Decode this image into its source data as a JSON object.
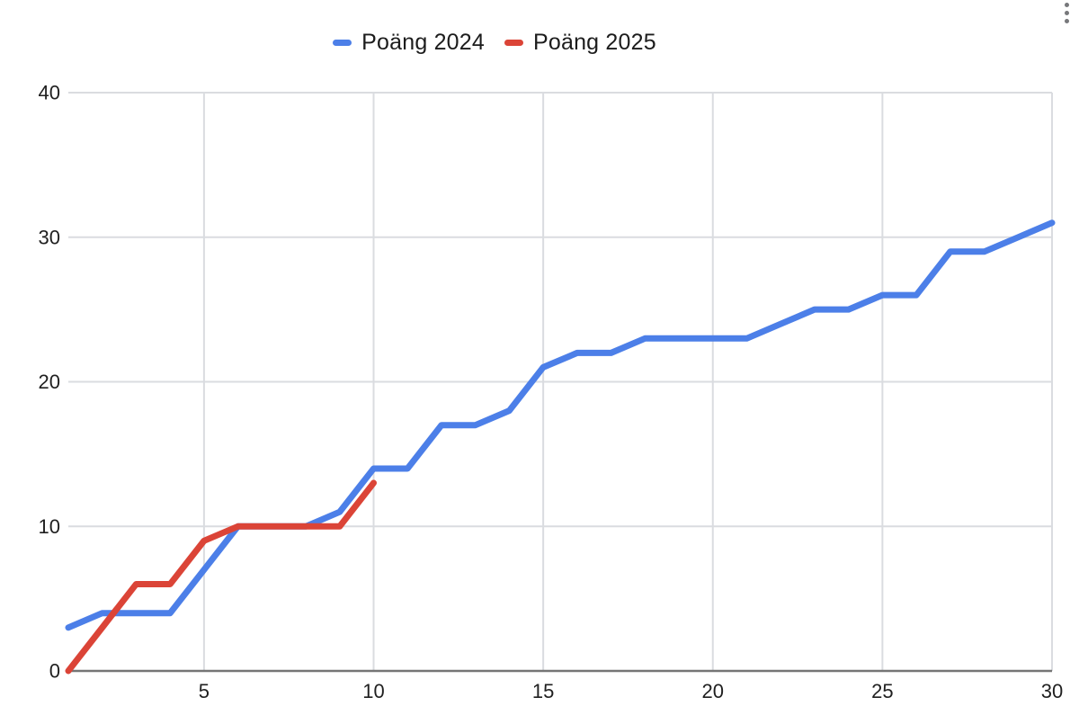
{
  "legend": {
    "items": [
      {
        "label": "Poäng 2024"
      },
      {
        "label": "Poäng 2025"
      }
    ]
  },
  "menu": {
    "icon": "kebab-menu-icon"
  },
  "chart_data": {
    "type": "line",
    "x": [
      1,
      2,
      3,
      4,
      5,
      6,
      7,
      8,
      9,
      10,
      11,
      12,
      13,
      14,
      15,
      16,
      17,
      18,
      19,
      20,
      21,
      22,
      23,
      24,
      25,
      26,
      27,
      28,
      29,
      30
    ],
    "series": [
      {
        "name": "Poäng 2024",
        "color": "#4c7fe8",
        "values": [
          3,
          4,
          4,
          4,
          7,
          10,
          10,
          10,
          11,
          14,
          14,
          17,
          17,
          18,
          21,
          22,
          22,
          23,
          23,
          23,
          23,
          24,
          25,
          25,
          26,
          26,
          29,
          29,
          30,
          31
        ]
      },
      {
        "name": "Poäng 2025",
        "color": "#db4437",
        "values": [
          0,
          3,
          6,
          6,
          9,
          10,
          10,
          10,
          10,
          13
        ]
      }
    ],
    "title": "",
    "xlabel": "",
    "ylabel": "",
    "xlim": [
      1,
      30
    ],
    "ylim": [
      0,
      40
    ],
    "xticks": [
      5,
      10,
      15,
      20,
      25,
      30
    ],
    "yticks": [
      0,
      10,
      20,
      30,
      40
    ],
    "grid": true,
    "grid_color": "#dadce0",
    "axis_color": "#757575",
    "label_color": "#1f1f1f",
    "legend_position": "top"
  }
}
